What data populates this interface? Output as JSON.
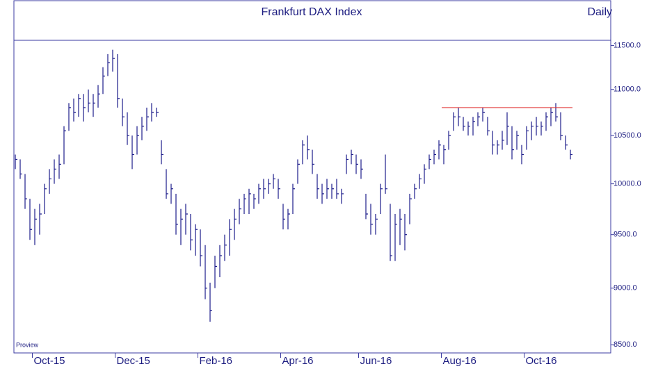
{
  "chart_data": {
    "type": "ohlc",
    "title": "Frankfurt DAX Index",
    "subtitle": "Daily",
    "source": "Proview",
    "color": "#1c1c8a",
    "resistance": {
      "value": 10800,
      "color": "#e03030"
    },
    "log_scale": true,
    "ylim": [
      8430,
      11560
    ],
    "yticks": [
      {
        "value": 8500,
        "label": "8500.0"
      },
      {
        "value": 9000,
        "label": "9000.0"
      },
      {
        "value": 9500,
        "label": "9500.0"
      },
      {
        "value": 10000,
        "label": "10000.0"
      },
      {
        "value": 10500,
        "label": "10500.0"
      },
      {
        "value": 11000,
        "label": "11000.0"
      },
      {
        "value": 11500,
        "label": "11500.0"
      }
    ],
    "categories": [
      null,
      null,
      null,
      null,
      "Oct-15",
      null,
      null,
      null,
      null,
      null,
      null,
      null,
      null,
      null,
      null,
      null,
      null,
      null,
      null,
      null,
      null,
      "Dec-15",
      null,
      null,
      null,
      null,
      null,
      null,
      null,
      null,
      null,
      null,
      null,
      null,
      null,
      null,
      null,
      null,
      "Feb-16",
      null,
      null,
      null,
      null,
      null,
      null,
      null,
      null,
      null,
      null,
      null,
      null,
      null,
      null,
      null,
      null,
      "Apr-16",
      null,
      null,
      null,
      null,
      null,
      null,
      null,
      null,
      null,
      null,
      null,
      null,
      null,
      null,
      null,
      "Jun-16",
      null,
      null,
      null,
      null,
      null,
      null,
      null,
      null,
      null,
      null,
      null,
      null,
      null,
      null,
      null,
      null,
      "Aug-16",
      null,
      null,
      null,
      null,
      null,
      null,
      null,
      null,
      null,
      null,
      null,
      null,
      null,
      null,
      null,
      null,
      "Oct-16",
      null,
      null,
      null,
      null,
      null,
      null,
      null,
      null,
      null
    ],
    "high": [
      10300,
      10250,
      10100,
      9850,
      9750,
      9800,
      10000,
      10150,
      10250,
      10300,
      10600,
      10850,
      10900,
      10950,
      10950,
      11000,
      10950,
      11050,
      11250,
      11400,
      11450,
      11400,
      10900,
      10750,
      10500,
      10600,
      10700,
      10800,
      10850,
      10800,
      10450,
      10150,
      10000,
      9900,
      9750,
      9800,
      9700,
      9600,
      9550,
      9400,
      9050,
      9300,
      9400,
      9500,
      9650,
      9750,
      9850,
      9900,
      9950,
      9900,
      10000,
      10050,
      10050,
      10100,
      10050,
      9800,
      9750,
      10000,
      10250,
      10450,
      10500,
      10350,
      10100,
      10000,
      10050,
      10000,
      10050,
      9950,
      10300,
      10350,
      10300,
      10250,
      9900,
      9800,
      9700,
      10000,
      10300,
      9800,
      9700,
      9750,
      9700,
      9900,
      10000,
      10100,
      10200,
      10300,
      10350,
      10450,
      10400,
      10550,
      10750,
      10800,
      10700,
      10650,
      10700,
      10750,
      10800,
      10700,
      10550,
      10450,
      10550,
      10750,
      10600,
      10550,
      10400,
      10600,
      10650,
      10700,
      10650,
      10750,
      10800,
      10850,
      10750,
      10500,
      10350
    ],
    "low": [
      10150,
      10050,
      9750,
      9450,
      9400,
      9500,
      9700,
      9900,
      10000,
      10050,
      10200,
      10550,
      10650,
      10700,
      10650,
      10750,
      10700,
      10800,
      10950,
      11150,
      11200,
      10800,
      10600,
      10400,
      10150,
      10300,
      10450,
      10550,
      10650,
      10700,
      10200,
      9850,
      9800,
      9500,
      9400,
      9500,
      9350,
      9300,
      9200,
      8900,
      8700,
      9000,
      9100,
      9250,
      9300,
      9450,
      9600,
      9700,
      9700,
      9750,
      9800,
      9850,
      9900,
      9950,
      9850,
      9550,
      9550,
      9700,
      10000,
      10200,
      10250,
      10100,
      9850,
      9800,
      9850,
      9850,
      9850,
      9800,
      10100,
      10200,
      10100,
      10050,
      9650,
      9500,
      9500,
      9700,
      9900,
      9250,
      9250,
      9400,
      9350,
      9600,
      9850,
      9950,
      10000,
      10150,
      10200,
      10250,
      10200,
      10350,
      10550,
      10600,
      10550,
      10500,
      10500,
      10600,
      10650,
      10500,
      10300,
      10300,
      10350,
      10400,
      10250,
      10350,
      10200,
      10350,
      10450,
      10500,
      10500,
      10550,
      10600,
      10650,
      10450,
      10350,
      10250
    ],
    "close": [
      10250,
      10100,
      9850,
      9550,
      9650,
      9700,
      9950,
      10050,
      10150,
      10200,
      10550,
      10800,
      10750,
      10900,
      10800,
      10850,
      10850,
      10950,
      11150,
      11300,
      11350,
      10900,
      10700,
      10500,
      10300,
      10500,
      10600,
      10700,
      10750,
      10750,
      10300,
      9900,
      9950,
      9600,
      9650,
      9700,
      9450,
      9550,
      9300,
      9000,
      8800,
      9200,
      9300,
      9400,
      9550,
      9650,
      9750,
      9850,
      9900,
      9850,
      9950,
      9950,
      10000,
      10050,
      9950,
      9650,
      9700,
      9950,
      10200,
      10400,
      10350,
      10200,
      9950,
      9900,
      9950,
      9950,
      9900,
      9900,
      10250,
      10300,
      10200,
      10150,
      9700,
      9600,
      9650,
      9950,
      9950,
      9300,
      9600,
      9650,
      9500,
      9850,
      9950,
      10050,
      10150,
      10250,
      10300,
      10400,
      10350,
      10500,
      10700,
      10700,
      10600,
      10600,
      10650,
      10700,
      10750,
      10550,
      10400,
      10400,
      10450,
      10600,
      10350,
      10500,
      10300,
      10550,
      10600,
      10600,
      10600,
      10700,
      10750,
      10700,
      10500,
      10400,
      10300
    ]
  }
}
